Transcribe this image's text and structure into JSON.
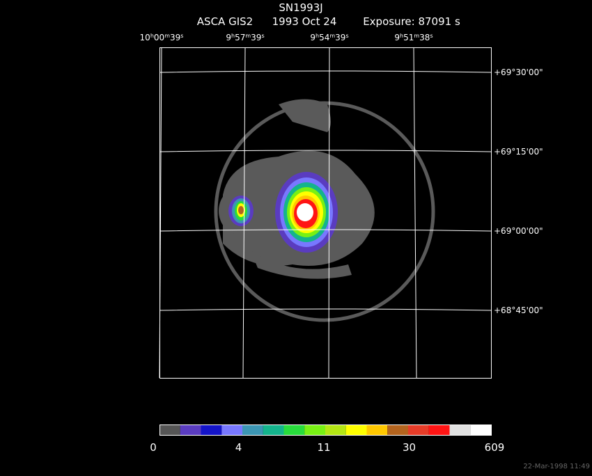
{
  "header": {
    "title": "SN1993J",
    "instrument": "ASCA GIS2",
    "date": "1993 Oct 24",
    "exposure": "Exposure: 87091 s"
  },
  "grid": {
    "ra_labels": [
      [
        "10",
        "h",
        "00",
        "m",
        "39",
        "s"
      ],
      [
        "9",
        "h",
        "57",
        "m",
        "39",
        "s"
      ],
      [
        "9",
        "h",
        "54",
        "m",
        "39",
        "s"
      ],
      [
        "9",
        "h",
        "51",
        "m",
        "38",
        "s"
      ]
    ],
    "dec_labels": [
      "+69°30'00\"",
      "+69°15'00\"",
      "+69°00'00\"",
      "+68°45'00\""
    ]
  },
  "colorbar": {
    "colors": [
      "#555555",
      "#5a3cc0",
      "#1414c8",
      "#7878ff",
      "#3c96b4",
      "#14b48c",
      "#28dc3c",
      "#78f014",
      "#b4e614",
      "#ffff00",
      "#ffc800",
      "#b4641e",
      "#e63c28",
      "#ff1414",
      "#e1e1e1",
      "#ffffff"
    ],
    "ticks": [
      0,
      4,
      11,
      30,
      609
    ]
  },
  "footer": {
    "timestamp": "22-Mar-1998 11:49"
  }
}
